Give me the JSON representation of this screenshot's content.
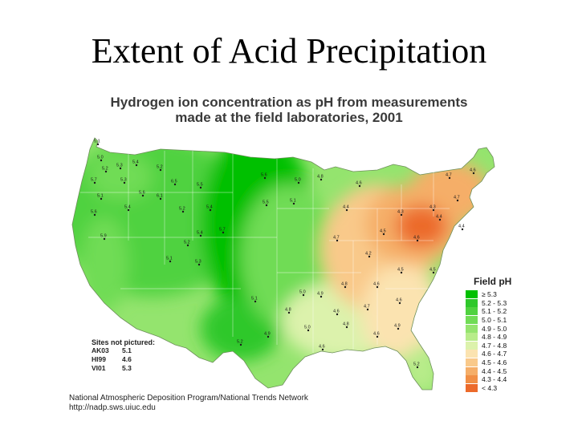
{
  "slide": {
    "title": "Extent of Acid Precipitation"
  },
  "map": {
    "title_line1": "Hydrogen ion concentration as pH from measurements",
    "title_line2": "made at the field laboratories, 2001"
  },
  "legend": {
    "title": "Field pH",
    "items": [
      {
        "label": "≥ 5.3",
        "color": "#00c000"
      },
      {
        "label": "5.2 - 5.3",
        "color": "#2ec82a"
      },
      {
        "label": "5.1 - 5.2",
        "color": "#4fd23f"
      },
      {
        "label": "5.0 - 5.1",
        "color": "#70dc55"
      },
      {
        "label": "4.9 - 5.0",
        "color": "#94e46e"
      },
      {
        "label": "4.8 - 4.9",
        "color": "#b8ec8a"
      },
      {
        "label": "4.7 - 4.8",
        "color": "#dcf2ac"
      },
      {
        "label": "4.6 - 4.7",
        "color": "#fbe3b0"
      },
      {
        "label": "4.5 - 4.6",
        "color": "#f9c98a"
      },
      {
        "label": "4.4 - 4.5",
        "color": "#f5ae68"
      },
      {
        "label": "4.3 - 4.4",
        "color": "#f18f45"
      },
      {
        "label": "< 4.3",
        "color": "#ec6a2a"
      }
    ]
  },
  "sites_not_pictured": {
    "heading": "Sites not pictured:",
    "sites": [
      {
        "code": "AK03",
        "value": "5.1"
      },
      {
        "code": "HI99",
        "value": "4.6"
      },
      {
        "code": "VI01",
        "value": "5.3"
      }
    ]
  },
  "credit": {
    "line1": "National Atmospheric Deposition Program/National Trends Network",
    "line2": "http://nadp.sws.uiuc.edu"
  },
  "site_values": [
    {
      "label": "5.1"
    },
    {
      "label": "5.0"
    },
    {
      "label": "5.3"
    },
    {
      "label": "5.7"
    },
    {
      "label": "5.2"
    },
    {
      "label": "5.1"
    },
    {
      "label": "5.3"
    },
    {
      "label": "5.4"
    },
    {
      "label": "5.2"
    },
    {
      "label": "5.6"
    },
    {
      "label": "5.6"
    },
    {
      "label": "5.9"
    },
    {
      "label": "5.4"
    },
    {
      "label": "6.1"
    },
    {
      "label": "5.2"
    },
    {
      "label": "6.5"
    },
    {
      "label": "5.5"
    },
    {
      "label": "5.4"
    },
    {
      "label": "5.4"
    },
    {
      "label": "5.7"
    },
    {
      "label": "5.2"
    },
    {
      "label": "5.1"
    },
    {
      "label": "5.3"
    },
    {
      "label": "5.6"
    },
    {
      "label": "5.5"
    },
    {
      "label": "5.0"
    },
    {
      "label": "5.1"
    },
    {
      "label": "4.8"
    },
    {
      "label": "4.6"
    },
    {
      "label": "4.4"
    },
    {
      "label": "4.7"
    },
    {
      "label": "4.3"
    },
    {
      "label": "4.5"
    },
    {
      "label": "4.2"
    },
    {
      "label": "4.5"
    },
    {
      "label": "4.6"
    },
    {
      "label": "4.8"
    },
    {
      "label": "5.0"
    },
    {
      "label": "4.9"
    },
    {
      "label": "4.6"
    },
    {
      "label": "4.7"
    },
    {
      "label": "4.8"
    },
    {
      "label": "5.0"
    },
    {
      "label": "4.6"
    },
    {
      "label": "4.9"
    },
    {
      "label": "5.2"
    },
    {
      "label": "4.4"
    },
    {
      "label": "4.7"
    },
    {
      "label": "4.6"
    },
    {
      "label": "4.7"
    },
    {
      "label": "4.6"
    },
    {
      "label": "4.3"
    },
    {
      "label": "4.4"
    },
    {
      "label": "4.5"
    },
    {
      "label": "4.6"
    },
    {
      "label": "4.6"
    },
    {
      "label": "5.2"
    },
    {
      "label": "4.9"
    },
    {
      "label": "4.8"
    },
    {
      "label": "5.1"
    }
  ]
}
